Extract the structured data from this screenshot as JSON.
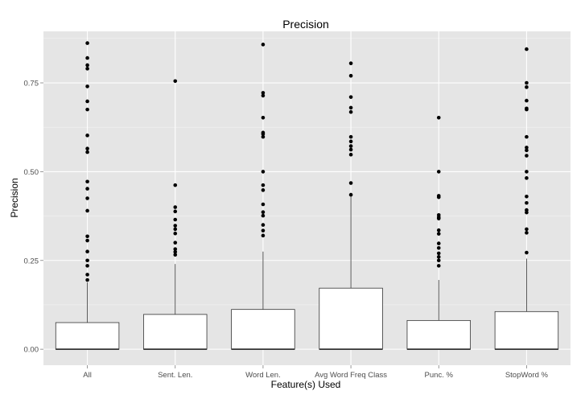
{
  "chart_data": {
    "type": "box",
    "title": "Precision",
    "xlabel": "Feature(s) Used",
    "ylabel": "Precision",
    "ylim": [
      -0.045,
      0.895
    ],
    "yticks": [
      0.0,
      0.25,
      0.5,
      0.75
    ],
    "ytick_labels": [
      "0.00",
      "0.25",
      "0.50",
      "0.75"
    ],
    "grid": true,
    "categories": [
      "All",
      "Sent. Len.",
      "Word Len.",
      "Avg Word Freq Class",
      "Punc. %",
      "StopWord %"
    ],
    "boxes": [
      {
        "category": "All",
        "min": 0.0,
        "q1": 0.0,
        "median": 0.0,
        "q3": 0.075,
        "whisker_high": 0.188,
        "outliers": [
          0.862,
          0.82,
          0.8,
          0.79,
          0.74,
          0.698,
          0.675,
          0.602,
          0.565,
          0.555,
          0.472,
          0.452,
          0.425,
          0.39,
          0.318,
          0.306,
          0.275,
          0.25,
          0.235,
          0.21,
          0.195
        ]
      },
      {
        "category": "Sent. Len.",
        "min": 0.0,
        "q1": 0.0,
        "median": 0.0,
        "q3": 0.098,
        "whisker_high": 0.24,
        "outliers": [
          0.755,
          0.462,
          0.4,
          0.388,
          0.365,
          0.348,
          0.338,
          0.326,
          0.3,
          0.282,
          0.274,
          0.266
        ]
      },
      {
        "category": "Word Len.",
        "min": 0.0,
        "q1": 0.0,
        "median": 0.0,
        "q3": 0.112,
        "whisker_high": 0.275,
        "outliers": [
          0.858,
          0.722,
          0.714,
          0.652,
          0.61,
          0.606,
          0.598,
          0.5,
          0.462,
          0.448,
          0.408,
          0.386,
          0.376,
          0.35,
          0.334,
          0.32
        ]
      },
      {
        "category": "Avg Word Freq Class",
        "min": 0.0,
        "q1": 0.0,
        "median": 0.0,
        "q3": 0.172,
        "whisker_high": 0.432,
        "outliers": [
          0.805,
          0.77,
          0.71,
          0.68,
          0.668,
          0.598,
          0.585,
          0.572,
          0.562,
          0.548,
          0.468,
          0.435
        ]
      },
      {
        "category": "Punc. %",
        "min": 0.0,
        "q1": 0.0,
        "median": 0.0,
        "q3": 0.081,
        "whisker_high": 0.195,
        "outliers": [
          0.652,
          0.5,
          0.432,
          0.428,
          0.378,
          0.372,
          0.368,
          0.335,
          0.325,
          0.298,
          0.285,
          0.27,
          0.26,
          0.25,
          0.235
        ]
      },
      {
        "category": "StopWord %",
        "min": 0.0,
        "q1": 0.0,
        "median": 0.0,
        "q3": 0.106,
        "whisker_high": 0.255,
        "outliers": [
          0.845,
          0.75,
          0.738,
          0.7,
          0.678,
          0.675,
          0.598,
          0.568,
          0.56,
          0.545,
          0.5,
          0.482,
          0.43,
          0.412,
          0.392,
          0.385,
          0.338,
          0.328,
          0.272
        ]
      }
    ]
  },
  "colors": {
    "panel_background": "#e5e5e5",
    "grid_major": "#ffffff",
    "grid_minor": "#f2f2f2",
    "box_fill": "#ffffff",
    "box_stroke": "#333333",
    "point": "#000000",
    "tick_text": "#4d4d4d"
  }
}
